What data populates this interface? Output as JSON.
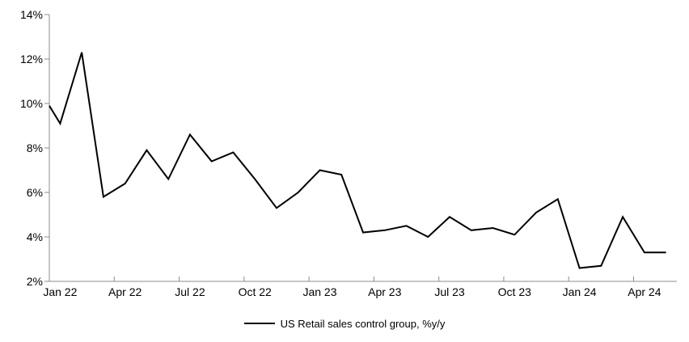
{
  "chart_data": {
    "type": "line",
    "title": "",
    "categories": [
      "Jan 22",
      "Feb 22",
      "Mar 22",
      "Apr 22",
      "May 22",
      "Jun 22",
      "Jul 22",
      "Aug 22",
      "Sep 22",
      "Oct 22",
      "Nov 22",
      "Dec 22",
      "Jan 23",
      "Feb 23",
      "Mar 23",
      "Apr 23",
      "May 23",
      "Jun 23",
      "Jul 23",
      "Aug 23",
      "Sep 23",
      "Oct 23",
      "Nov 23",
      "Dec 23",
      "Jan 24",
      "Feb 24",
      "Mar 24",
      "Apr 24",
      "May 24"
    ],
    "series": [
      {
        "name": "US Retail sales control group, %y/y",
        "values": [
          9.1,
          12.3,
          5.8,
          6.4,
          7.9,
          6.6,
          8.6,
          7.4,
          7.8,
          6.6,
          5.3,
          6.0,
          7.0,
          6.8,
          4.2,
          4.3,
          4.5,
          4.0,
          4.9,
          4.3,
          4.4,
          4.1,
          5.1,
          5.7,
          2.6,
          2.7,
          4.9,
          3.3,
          3.3
        ]
      }
    ],
    "left_edge_start_value": 9.9,
    "ylim": [
      2,
      14
    ],
    "y_tick_values": [
      2,
      4,
      6,
      8,
      10,
      12,
      14
    ],
    "y_tick_labels": [
      "2%",
      "4%",
      "6%",
      "8%",
      "10%",
      "12%",
      "14%"
    ],
    "x_tick_label_every": 3,
    "x_tick_labels_shown": [
      "Jan 22",
      "Apr 22",
      "Jul 22",
      "Oct 22",
      "Jan 23",
      "Apr 23",
      "Jul 23",
      "Oct 23",
      "Jan 24",
      "Apr 24"
    ],
    "grid": false,
    "legend_position": "bottom-center",
    "line_color": "#000000",
    "axis_color": "#8c8c8c",
    "text_color": "#000000",
    "background": "#ffffff"
  },
  "legend": {
    "label": "US Retail sales control group, %y/y"
  }
}
